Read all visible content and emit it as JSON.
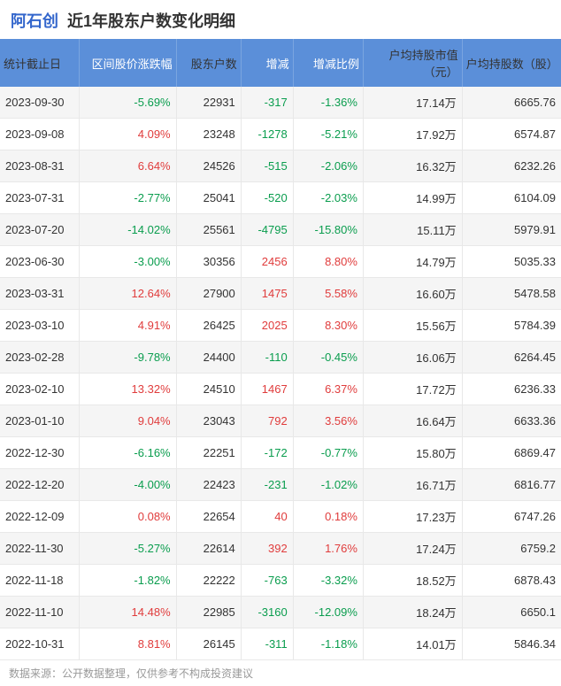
{
  "header": {
    "company_name": "阿石创",
    "title": "近1年股东户数变化明细"
  },
  "columns": [
    {
      "key": "date",
      "label": "统计截止日",
      "class": "col-date",
      "align": "left"
    },
    {
      "key": "price_pct",
      "label": "区间股价涨跌幅",
      "class": "col-pct",
      "align": "right",
      "signed": true
    },
    {
      "key": "count",
      "label": "股东户数",
      "class": "col-count",
      "align": "right"
    },
    {
      "key": "change",
      "label": "增减",
      "class": "col-change",
      "align": "right",
      "signed": true
    },
    {
      "key": "ratio",
      "label": "增减比例",
      "class": "col-ratio",
      "align": "right",
      "signed": true
    },
    {
      "key": "value",
      "label": "户均持股市值（元）",
      "class": "col-value",
      "align": "right"
    },
    {
      "key": "shares",
      "label": "户均持股数（股）",
      "class": "col-shares",
      "align": "right"
    }
  ],
  "rows": [
    {
      "date": "2023-09-30",
      "price_pct": "-5.69%",
      "count": "22931",
      "change": "-317",
      "ratio": "-1.36%",
      "value": "17.14万",
      "shares": "6665.76",
      "price_sign": "neg",
      "change_sign": "neg",
      "ratio_sign": "neg"
    },
    {
      "date": "2023-09-08",
      "price_pct": "4.09%",
      "count": "23248",
      "change": "-1278",
      "ratio": "-5.21%",
      "value": "17.92万",
      "shares": "6574.87",
      "price_sign": "pos",
      "change_sign": "neg",
      "ratio_sign": "neg"
    },
    {
      "date": "2023-08-31",
      "price_pct": "6.64%",
      "count": "24526",
      "change": "-515",
      "ratio": "-2.06%",
      "value": "16.32万",
      "shares": "6232.26",
      "price_sign": "pos",
      "change_sign": "neg",
      "ratio_sign": "neg"
    },
    {
      "date": "2023-07-31",
      "price_pct": "-2.77%",
      "count": "25041",
      "change": "-520",
      "ratio": "-2.03%",
      "value": "14.99万",
      "shares": "6104.09",
      "price_sign": "neg",
      "change_sign": "neg",
      "ratio_sign": "neg"
    },
    {
      "date": "2023-07-20",
      "price_pct": "-14.02%",
      "count": "25561",
      "change": "-4795",
      "ratio": "-15.80%",
      "value": "15.11万",
      "shares": "5979.91",
      "price_sign": "neg",
      "change_sign": "neg",
      "ratio_sign": "neg"
    },
    {
      "date": "2023-06-30",
      "price_pct": "-3.00%",
      "count": "30356",
      "change": "2456",
      "ratio": "8.80%",
      "value": "14.79万",
      "shares": "5035.33",
      "price_sign": "neg",
      "change_sign": "pos",
      "ratio_sign": "pos"
    },
    {
      "date": "2023-03-31",
      "price_pct": "12.64%",
      "count": "27900",
      "change": "1475",
      "ratio": "5.58%",
      "value": "16.60万",
      "shares": "5478.58",
      "price_sign": "pos",
      "change_sign": "pos",
      "ratio_sign": "pos"
    },
    {
      "date": "2023-03-10",
      "price_pct": "4.91%",
      "count": "26425",
      "change": "2025",
      "ratio": "8.30%",
      "value": "15.56万",
      "shares": "5784.39",
      "price_sign": "pos",
      "change_sign": "pos",
      "ratio_sign": "pos"
    },
    {
      "date": "2023-02-28",
      "price_pct": "-9.78%",
      "count": "24400",
      "change": "-110",
      "ratio": "-0.45%",
      "value": "16.06万",
      "shares": "6264.45",
      "price_sign": "neg",
      "change_sign": "neg",
      "ratio_sign": "neg"
    },
    {
      "date": "2023-02-10",
      "price_pct": "13.32%",
      "count": "24510",
      "change": "1467",
      "ratio": "6.37%",
      "value": "17.72万",
      "shares": "6236.33",
      "price_sign": "pos",
      "change_sign": "pos",
      "ratio_sign": "pos"
    },
    {
      "date": "2023-01-10",
      "price_pct": "9.04%",
      "count": "23043",
      "change": "792",
      "ratio": "3.56%",
      "value": "16.64万",
      "shares": "6633.36",
      "price_sign": "pos",
      "change_sign": "pos",
      "ratio_sign": "pos"
    },
    {
      "date": "2022-12-30",
      "price_pct": "-6.16%",
      "count": "22251",
      "change": "-172",
      "ratio": "-0.77%",
      "value": "15.80万",
      "shares": "6869.47",
      "price_sign": "neg",
      "change_sign": "neg",
      "ratio_sign": "neg"
    },
    {
      "date": "2022-12-20",
      "price_pct": "-4.00%",
      "count": "22423",
      "change": "-231",
      "ratio": "-1.02%",
      "value": "16.71万",
      "shares": "6816.77",
      "price_sign": "neg",
      "change_sign": "neg",
      "ratio_sign": "neg"
    },
    {
      "date": "2022-12-09",
      "price_pct": "0.08%",
      "count": "22654",
      "change": "40",
      "ratio": "0.18%",
      "value": "17.23万",
      "shares": "6747.26",
      "price_sign": "pos",
      "change_sign": "pos",
      "ratio_sign": "pos"
    },
    {
      "date": "2022-11-30",
      "price_pct": "-5.27%",
      "count": "22614",
      "change": "392",
      "ratio": "1.76%",
      "value": "17.24万",
      "shares": "6759.2",
      "price_sign": "neg",
      "change_sign": "pos",
      "ratio_sign": "pos"
    },
    {
      "date": "2022-11-18",
      "price_pct": "-1.82%",
      "count": "22222",
      "change": "-763",
      "ratio": "-3.32%",
      "value": "18.52万",
      "shares": "6878.43",
      "price_sign": "neg",
      "change_sign": "neg",
      "ratio_sign": "neg"
    },
    {
      "date": "2022-11-10",
      "price_pct": "14.48%",
      "count": "22985",
      "change": "-3160",
      "ratio": "-12.09%",
      "value": "18.24万",
      "shares": "6650.1",
      "price_sign": "pos",
      "change_sign": "neg",
      "ratio_sign": "neg"
    },
    {
      "date": "2022-10-31",
      "price_pct": "8.81%",
      "count": "26145",
      "change": "-311",
      "ratio": "-1.18%",
      "value": "14.01万",
      "shares": "5846.34",
      "price_sign": "pos",
      "change_sign": "neg",
      "ratio_sign": "neg"
    }
  ],
  "footer": "数据来源：公开数据整理，仅供参考不构成投资建议",
  "colors": {
    "header_bg": "#5b8fd9",
    "header_text": "#ffffff",
    "positive": "#e03c3c",
    "negative": "#0a9d4e",
    "row_even": "#f5f5f5",
    "row_odd": "#ffffff",
    "border": "#e8e8e8",
    "link": "#3366cc",
    "text": "#333333",
    "footer_text": "#999999"
  }
}
